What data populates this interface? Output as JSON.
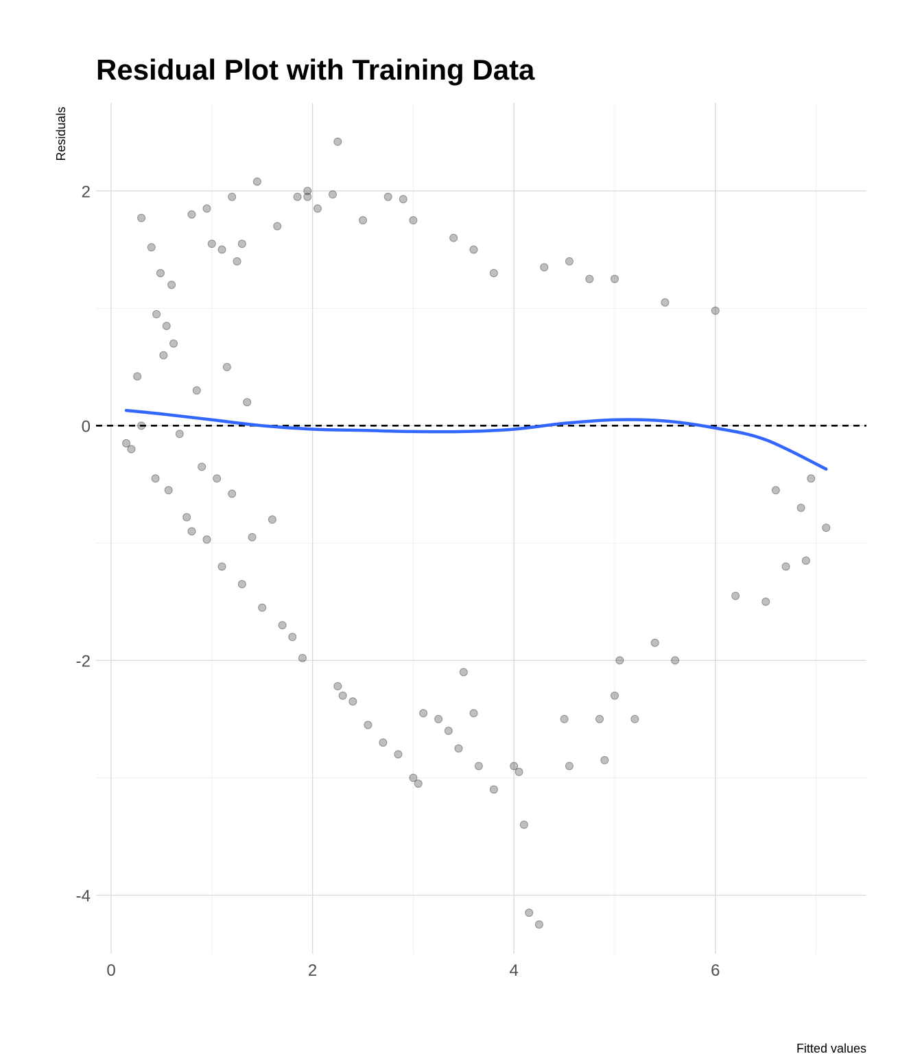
{
  "chart_data": {
    "type": "scatter",
    "title": "Residual Plot with Training Data",
    "xlabel": "Fitted values",
    "ylabel": "Residuals",
    "xlim": [
      -0.15,
      7.5
    ],
    "ylim": [
      -4.5,
      2.75
    ],
    "x_ticks": [
      0,
      2,
      4,
      6
    ],
    "y_ticks": [
      -4,
      -2,
      0,
      2
    ],
    "x_tick_labels": [
      "0",
      "2",
      "4",
      "6"
    ],
    "y_tick_labels": [
      "-4",
      "-2",
      "0",
      "2"
    ],
    "grid": true,
    "legend": "none",
    "point_color": "#000000",
    "point_opacity": 0.25,
    "smooth_color": "#3366FF",
    "reference_line": {
      "y": 0,
      "style": "dashed",
      "color": "#000000"
    },
    "series": [
      {
        "kind": "points",
        "x": [
          0.15,
          0.2,
          0.26,
          0.3,
          0.4,
          0.44,
          0.49,
          0.52,
          0.55,
          0.57,
          0.62,
          0.68,
          0.75,
          0.8,
          0.85,
          0.9,
          0.95,
          1.0,
          1.05,
          1.1,
          1.15,
          1.2,
          1.25,
          1.3,
          1.35,
          1.4,
          1.5,
          1.6,
          1.7,
          1.8,
          1.9,
          1.95,
          2.25,
          2.3,
          2.4,
          2.55,
          2.7,
          2.85,
          3.0,
          3.05,
          3.1,
          3.25,
          3.35,
          3.45,
          3.5,
          3.6,
          3.65,
          3.8,
          4.0,
          4.05,
          4.1,
          4.15,
          4.25,
          4.5,
          4.55,
          4.85,
          4.9,
          5.0,
          5.05,
          5.2,
          5.4,
          5.6,
          0.3,
          0.45,
          0.6,
          0.8,
          0.95,
          1.1,
          1.2,
          1.3,
          1.45,
          1.65,
          1.85,
          1.95,
          2.05,
          2.2,
          2.25,
          2.5,
          2.75,
          2.9,
          3.0,
          3.4,
          3.6,
          3.8,
          4.3,
          4.55,
          4.75,
          5.0,
          5.5,
          6.0,
          6.2,
          6.5,
          6.7,
          6.85,
          6.9,
          7.1,
          6.95,
          6.6
        ],
        "y": [
          -0.15,
          -0.2,
          0.42,
          1.77,
          1.52,
          -0.45,
          1.3,
          0.6,
          0.85,
          -0.55,
          0.7,
          -0.07,
          -0.78,
          -0.9,
          0.3,
          -0.35,
          -0.97,
          1.55,
          -0.45,
          -1.2,
          0.5,
          -0.58,
          1.4,
          -1.35,
          0.2,
          -0.95,
          -1.55,
          -0.8,
          -1.7,
          -1.8,
          -1.98,
          1.95,
          -2.22,
          -2.3,
          -2.35,
          -2.55,
          -2.7,
          -2.8,
          -3.0,
          -3.05,
          -2.45,
          -2.5,
          -2.6,
          -2.75,
          -2.1,
          -2.45,
          -2.9,
          -3.1,
          -2.9,
          -2.95,
          -3.4,
          -4.15,
          -4.25,
          -2.5,
          -2.9,
          -2.5,
          -2.85,
          -2.3,
          -2.0,
          -2.5,
          -1.85,
          -2.0,
          0.0,
          0.95,
          1.2,
          1.8,
          1.85,
          1.5,
          1.95,
          1.55,
          2.08,
          1.7,
          1.95,
          2.0,
          1.85,
          1.97,
          2.42,
          1.75,
          1.95,
          1.93,
          1.75,
          1.6,
          1.5,
          1.3,
          1.35,
          1.4,
          1.25,
          1.25,
          1.05,
          0.98,
          -1.45,
          -1.5,
          -1.2,
          -0.7,
          -1.15,
          -0.87,
          -0.45,
          -0.55
        ]
      },
      {
        "kind": "smooth",
        "x": [
          0.15,
          0.5,
          1.0,
          1.5,
          2.0,
          2.5,
          3.0,
          3.5,
          4.0,
          4.5,
          5.0,
          5.5,
          6.0,
          6.5,
          7.1
        ],
        "y": [
          0.13,
          0.1,
          0.05,
          0.0,
          -0.03,
          -0.04,
          -0.05,
          -0.05,
          -0.03,
          0.02,
          0.05,
          0.04,
          -0.02,
          -0.12,
          -0.37
        ]
      }
    ]
  }
}
